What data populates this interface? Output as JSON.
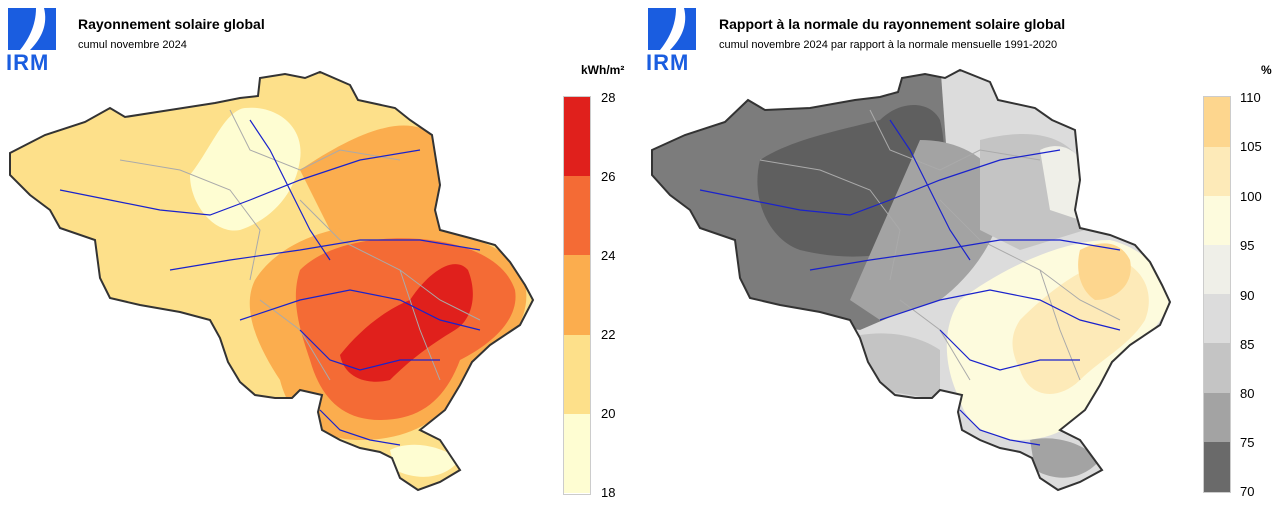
{
  "logo": {
    "text": "IRM",
    "color": "#1a5de0"
  },
  "left": {
    "title": "Rayonnement solaire global",
    "subtitle": "cumul novembre 2024",
    "unit": "kWh/m²",
    "legend": [
      {
        "label": "28",
        "color": "#e0201c"
      },
      {
        "label": "26",
        "color": "#f46b35"
      },
      {
        "label": "24",
        "color": "#fbad4e"
      },
      {
        "label": "22",
        "color": "#fde08a"
      },
      {
        "label": "20",
        "color": "#fefdd2"
      },
      {
        "label": "18"
      }
    ]
  },
  "right": {
    "title": "Rapport à la normale du rayonnement solaire global",
    "subtitle": "cumul novembre 2024 par rapport à la normale mensuelle 1991-2020",
    "unit": "%",
    "legend": [
      {
        "label": "110",
        "color": "#fdd68e"
      },
      {
        "label": "105",
        "color": "#fdeab8"
      },
      {
        "label": "100",
        "color": "#fdfbdd"
      },
      {
        "label": "95",
        "color": "#efefe8"
      },
      {
        "label": "90",
        "color": "#dcdcdc"
      },
      {
        "label": "85",
        "color": "#c4c4c4"
      },
      {
        "label": "80",
        "color": "#a3a3a3"
      },
      {
        "label": "75",
        "color": "#7c7c7c"
      },
      {
        "label": "70"
      }
    ]
  }
}
